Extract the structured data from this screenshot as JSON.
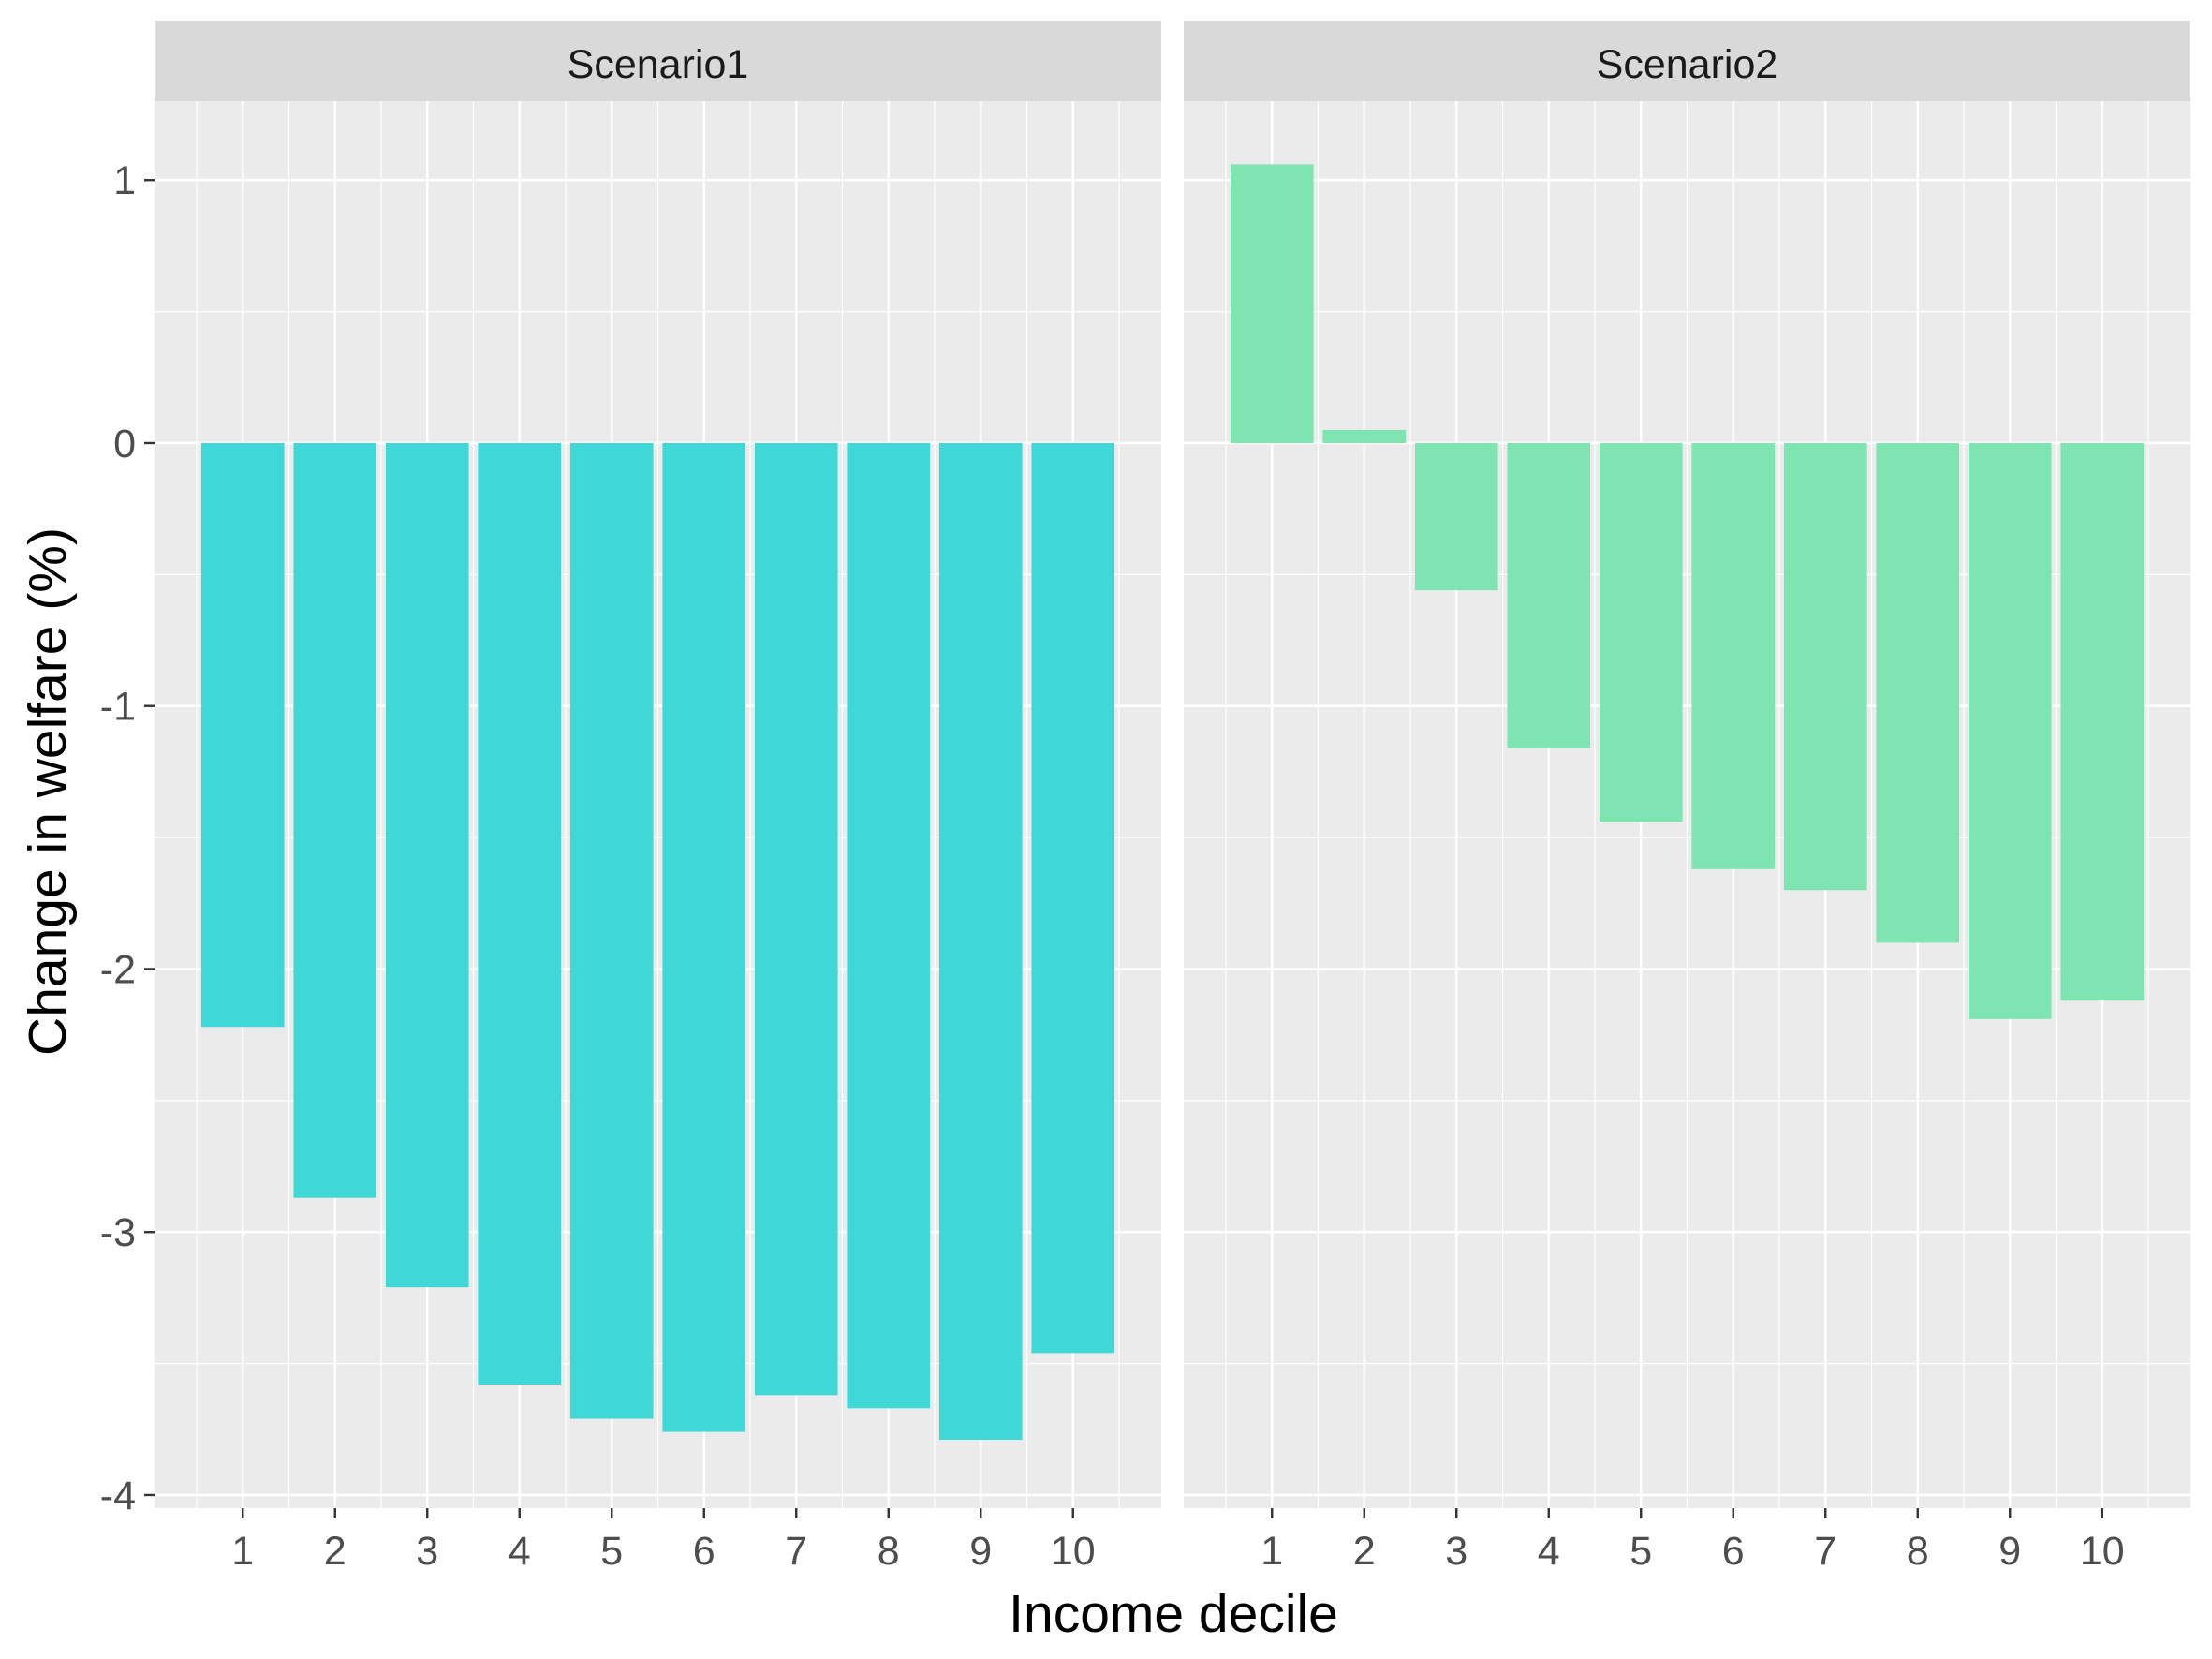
{
  "chart_data": {
    "type": "bar",
    "xlabel": "Income decile",
    "ylabel": "Change in welfare (%)",
    "ylim": [
      -4.05,
      1.3
    ],
    "yticks": [
      1,
      0,
      -1,
      -2,
      -3,
      -4
    ],
    "ytick_labels": [
      "1",
      "0",
      "-1",
      "-2",
      "-3",
      "-4"
    ],
    "categories": [
      "1",
      "2",
      "3",
      "4",
      "5",
      "6",
      "7",
      "8",
      "9",
      "10"
    ],
    "grid": true,
    "panels": [
      {
        "name": "Scenario1",
        "color": "#40D7D7",
        "values": [
          -2.22,
          -2.87,
          -3.21,
          -3.58,
          -3.71,
          -3.76,
          -3.62,
          -3.67,
          -3.79,
          -3.46
        ]
      },
      {
        "name": "Scenario2",
        "color": "#7EE4B2",
        "values": [
          1.06,
          0.05,
          -0.56,
          -1.16,
          -1.44,
          -1.62,
          -1.7,
          -1.9,
          -2.19,
          -2.12
        ]
      }
    ]
  }
}
